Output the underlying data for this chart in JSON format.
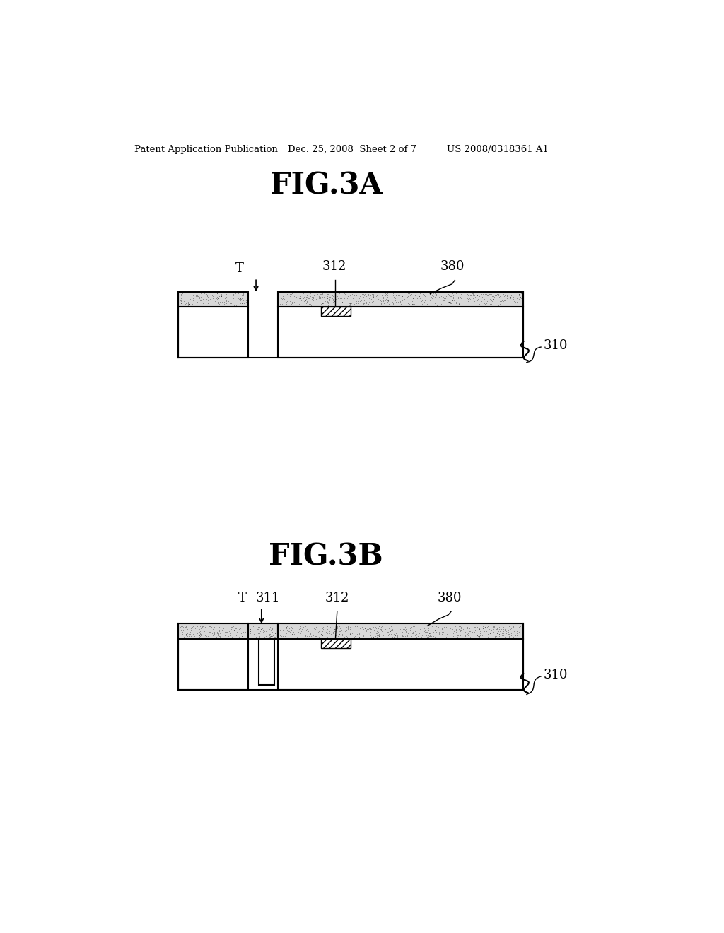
{
  "background_color": "#ffffff",
  "header_left": "Patent Application Publication",
  "header_mid": "Dec. 25, 2008  Sheet 2 of 7",
  "header_right": "US 2008/0318361 A1",
  "fig3a_title": "FIG.3A",
  "fig3b_title": "FIG.3B",
  "label_310_3a": "310",
  "label_312_3a": "312",
  "label_380_3a": "380",
  "label_T_3a": "T",
  "label_311_3b": "311",
  "label_312_3b": "312",
  "label_380_3b": "380",
  "label_T_3b": "T",
  "label_310_3b": "310",
  "stipple_color": "#000000",
  "line_color": "#000000",
  "tex_fill": "#d8d8d8"
}
